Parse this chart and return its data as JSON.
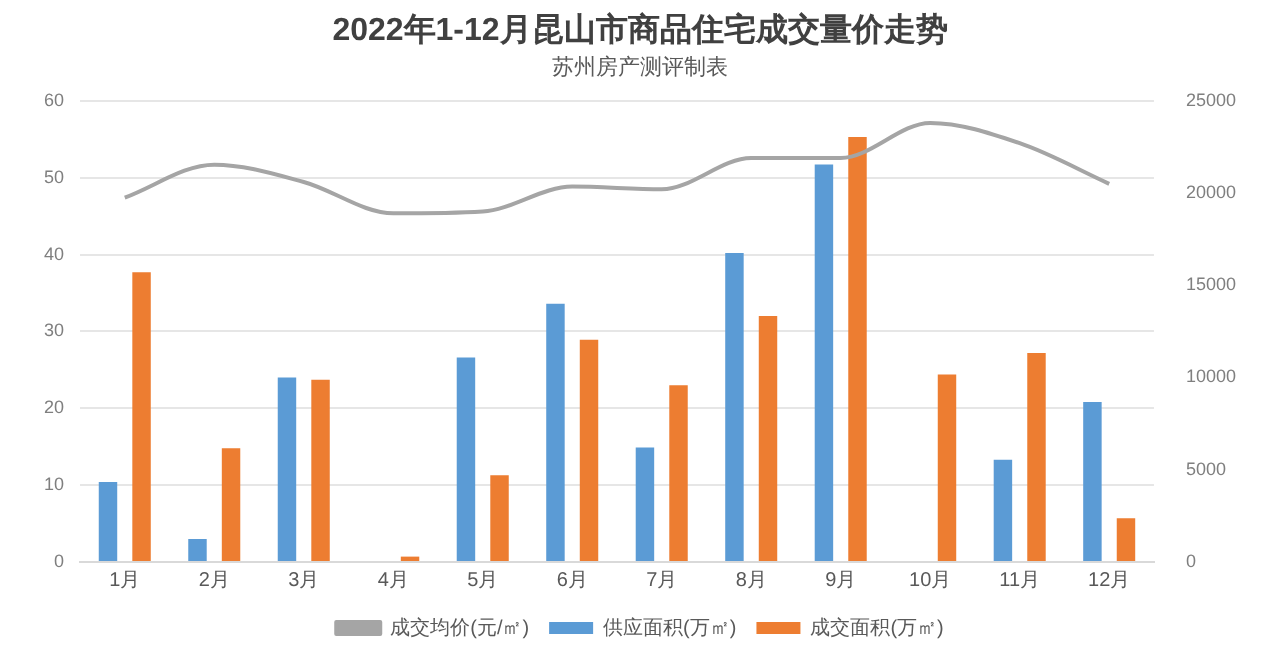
{
  "chart_data": {
    "type": "bar",
    "title": "2022年1-12月昆山市商品住宅成交量价走势",
    "subtitle": "苏州房产测评制表",
    "categories": [
      "1月",
      "2月",
      "3月",
      "4月",
      "5月",
      "6月",
      "7月",
      "8月",
      "9月",
      "10月",
      "11月",
      "12月"
    ],
    "series": [
      {
        "name": "供应面积(万㎡)",
        "color": "#5b9bd5",
        "values": [
          10.4,
          3,
          24,
          0,
          26.6,
          33.6,
          14.9,
          40.2,
          51.7,
          0,
          13.3,
          20.8
        ]
      },
      {
        "name": "成交面积(万㎡)",
        "color": "#ed7d31",
        "values": [
          37.7,
          14.8,
          23.7,
          0.7,
          11.3,
          28.9,
          23,
          32,
          55.3,
          24.4,
          27.2,
          5.7
        ]
      },
      {
        "name": "成交均价(元/㎡)",
        "color": "#a5a5a5",
        "type": "line",
        "axis": "y2",
        "marker": "none",
        "values": [
          19750,
          21540,
          20600,
          18900,
          19000,
          20350,
          20200,
          21900,
          21900,
          23800,
          22700,
          20500
        ]
      }
    ],
    "ylim": [
      0,
      60
    ],
    "yticks": [
      0,
      10,
      20,
      30,
      40,
      50,
      60
    ],
    "y2lim": [
      0,
      25000
    ],
    "y2ticks": [
      0,
      5000,
      10000,
      15000,
      20000,
      25000
    ],
    "grid": "y",
    "legend": "bottom"
  }
}
